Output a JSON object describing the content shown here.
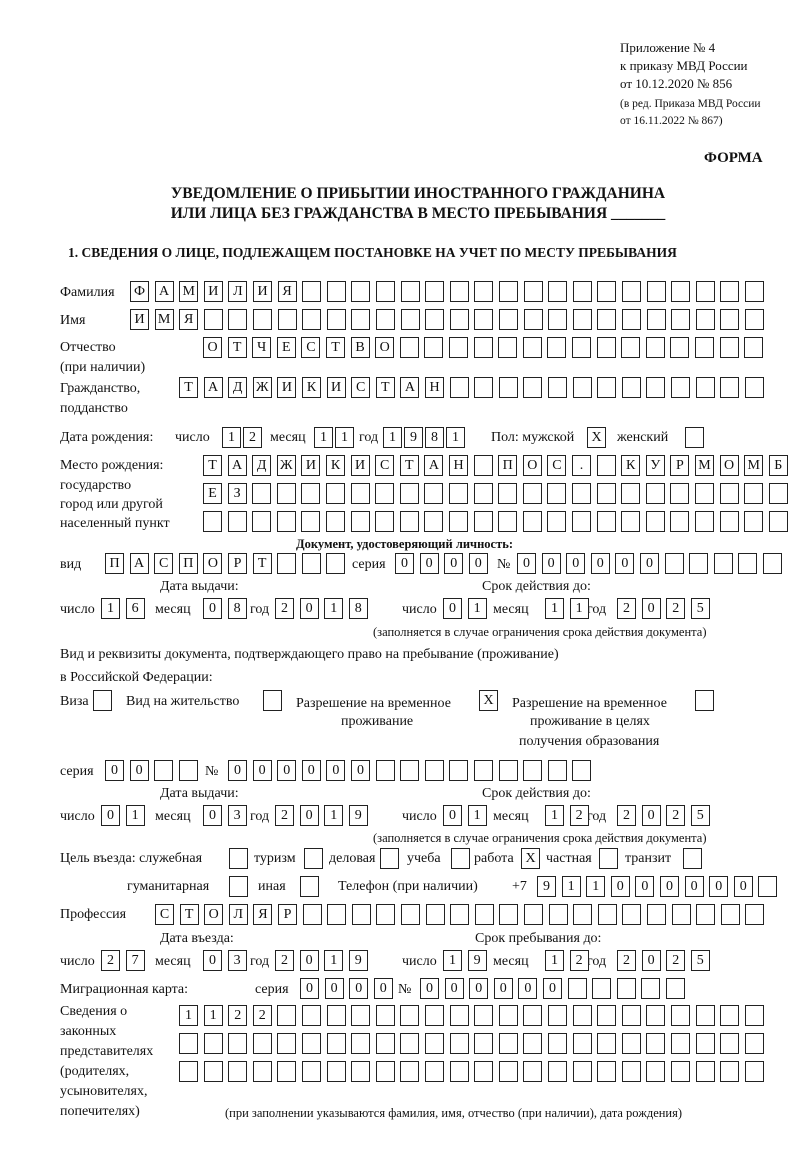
{
  "header": {
    "line1": "Приложение № 4",
    "line2": "к приказу МВД России",
    "line3": "от 10.12.2020 № 856",
    "line4": "(в ред. Приказа МВД России",
    "line5": "от 16.11.2022 № 867)",
    "forma": "ФОРМА"
  },
  "title": {
    "line1": "УВЕДОМЛЕНИЕ О ПРИБЫТИИ ИНОСТРАННОГО ГРАЖДАНИНА",
    "line2": "ИЛИ ЛИЦА БЕЗ ГРАЖДАНСТВА В МЕСТО ПРЕБЫВАНИЯ _______"
  },
  "section1": "1. СВЕДЕНИЯ О ЛИЦЕ, ПОДЛЕЖАЩЕМ ПОСТАНОВКЕ НА УЧЕТ ПО МЕСТУ ПРЕБЫВАНИЯ",
  "labels": {
    "surname": "Фамилия",
    "name": "Имя",
    "patronymic": "Отчество",
    "patronymic2": "(при наличии)",
    "citizenship": "Гражданство,",
    "citizenship2": "подданство",
    "birth_date": "Дата рождения:",
    "day": "число",
    "month": "месяц",
    "year": "год",
    "sex": "Пол: мужской",
    "female": "женский",
    "birth_place": "Место рождения:",
    "birth_place2": "государство",
    "birth_place3": "город или другой",
    "birth_place4": "населенный пункт",
    "id_doc": "Документ, удостоверяющий личность:",
    "kind": "вид",
    "series": "серия",
    "number": "№",
    "issue_date": "Дата выдачи:",
    "valid_until": "Срок действия до:",
    "valid_note": "(заполняется в случае ограничения срока действия документа)",
    "right_doc": "Вид и реквизиты документа, подтверждающего право на пребывание (проживание)",
    "right_doc2": "в Российской Федерации:",
    "visa": "Виза",
    "residence": "Вид на жительство",
    "temp_res": "Разрешение на временное",
    "temp_res2": "проживание",
    "temp_edu": "Разрешение на временное",
    "temp_edu2": "проживание в целях",
    "temp_edu3": "получения образования",
    "purpose": "Цель въезда: служебная",
    "tourism": "туризм",
    "business": "деловая",
    "study": "учеба",
    "work": "работа",
    "private": "частная",
    "transit": "транзит",
    "humanitarian": "гуманитарная",
    "other": "иная",
    "phone": "Телефон (при наличии)",
    "phone_prefix": "+7",
    "profession": "Профессия",
    "entry_date": "Дата въезда:",
    "stay_until": "Срок пребывания до:",
    "migration_card": "Миграционная карта:",
    "reps": "Сведения о",
    "reps2": "законных",
    "reps3": "представителях",
    "reps4": "(родителях,",
    "reps5": "усыновителях,",
    "reps6": "попечителях)",
    "reps_note": "(при заполнении указываются фамилия, имя, отчество (при наличии), дата рождения)"
  },
  "fields": {
    "surname": [
      "Ф",
      "А",
      "М",
      "И",
      "Л",
      "И",
      "Я"
    ],
    "name": [
      "И",
      "М",
      "Я"
    ],
    "patronymic": [
      "О",
      "Т",
      "Ч",
      "Е",
      "С",
      "Т",
      "В",
      "О"
    ],
    "citizenship": [
      "Т",
      "А",
      "Д",
      "Ж",
      "И",
      "К",
      "И",
      "С",
      "Т",
      "А",
      "Н"
    ],
    "birth_day": [
      "1",
      "2"
    ],
    "birth_month": [
      "1",
      "1"
    ],
    "birth_year": [
      "1",
      "9",
      "8",
      "1"
    ],
    "sex_male": true,
    "sex_female": false,
    "birth_place1": [
      "Т",
      "А",
      "Д",
      "Ж",
      "И",
      "К",
      "И",
      "С",
      "Т",
      "А",
      "Н",
      "",
      "П",
      "О",
      "С",
      ".",
      "",
      "К",
      "У",
      "Р",
      "М",
      "О",
      "М",
      "Б"
    ],
    "birth_place2": [
      "Е",
      "З"
    ],
    "birth_place3": [],
    "id_kind": [
      "П",
      "А",
      "С",
      "П",
      "О",
      "Р",
      "Т"
    ],
    "id_series": [
      "0",
      "0",
      "0",
      "0"
    ],
    "id_number": [
      "0",
      "0",
      "0",
      "0",
      "0",
      "0"
    ],
    "id_issue_day": [
      "1",
      "6"
    ],
    "id_issue_month": [
      "0",
      "8"
    ],
    "id_issue_year": [
      "2",
      "0",
      "1",
      "8"
    ],
    "id_valid_day": [
      "0",
      "1"
    ],
    "id_valid_month": [
      "1",
      "1"
    ],
    "id_valid_year": [
      "2",
      "0",
      "2",
      "5"
    ],
    "visa": false,
    "residence": false,
    "temp_res": true,
    "temp_edu": false,
    "rd_series": [
      "0",
      "0"
    ],
    "rd_number": [
      "0",
      "0",
      "0",
      "0",
      "0",
      "0"
    ],
    "rd_issue_day": [
      "0",
      "1"
    ],
    "rd_issue_month": [
      "0",
      "3"
    ],
    "rd_issue_year": [
      "2",
      "0",
      "1",
      "9"
    ],
    "rd_valid_day": [
      "0",
      "1"
    ],
    "rd_valid_month": [
      "1",
      "2"
    ],
    "rd_valid_year": [
      "2",
      "0",
      "2",
      "5"
    ],
    "p_service": false,
    "p_tourism": false,
    "p_business": false,
    "p_study": false,
    "p_work": true,
    "p_private": false,
    "p_transit": false,
    "p_humanitarian": false,
    "p_other": false,
    "phone": [
      "9",
      "1",
      "1",
      "0",
      "0",
      "0",
      "0",
      "0",
      "0"
    ],
    "profession": [
      "С",
      "Т",
      "О",
      "Л",
      "Я",
      "Р"
    ],
    "entry_day": [
      "2",
      "7"
    ],
    "entry_month": [
      "0",
      "3"
    ],
    "entry_year": [
      "2",
      "0",
      "1",
      "9"
    ],
    "stay_day": [
      "1",
      "9"
    ],
    "stay_month": [
      "1",
      "2"
    ],
    "stay_year": [
      "2",
      "0",
      "2",
      "5"
    ],
    "mc_series": [
      "0",
      "0",
      "0",
      "0"
    ],
    "mc_number": [
      "0",
      "0",
      "0",
      "0",
      "0",
      "0"
    ],
    "reps1": [
      "1",
      "1",
      "2",
      "2"
    ],
    "reps2": [],
    "reps3": []
  }
}
